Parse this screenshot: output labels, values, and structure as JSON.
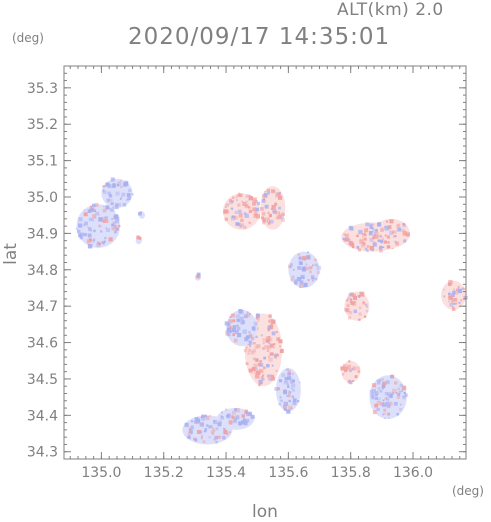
{
  "header": {
    "altitude_label": "ALT(km)  2.0",
    "timestamp": "2020/09/17 14:35:01"
  },
  "chart_data": {
    "type": "heatmap",
    "xlabel": "lon",
    "ylabel": "lat",
    "x_unit": "(deg)",
    "y_unit": "(deg)",
    "xlim": [
      134.88,
      136.17
    ],
    "ylim": [
      34.28,
      35.36
    ],
    "xticks": [
      "135.0",
      "135.2",
      "135.4",
      "135.6",
      "135.8",
      "136.0"
    ],
    "xtick_values": [
      135.0,
      135.2,
      135.4,
      135.6,
      135.8,
      136.0
    ],
    "yticks": [
      "34.3",
      "34.4",
      "34.5",
      "34.6",
      "34.7",
      "34.8",
      "34.9",
      "35.0",
      "35.1",
      "35.2",
      "35.3"
    ],
    "ytick_values": [
      34.3,
      34.4,
      34.5,
      34.6,
      34.7,
      34.8,
      34.9,
      35.0,
      35.1,
      35.2,
      35.3
    ],
    "grid": false,
    "colors": {
      "positive": "#f2a0a0",
      "negative": "#a8b0f0",
      "frame": "#808080"
    },
    "regions": [
      {
        "lon": 134.99,
        "lat": 34.92,
        "rx": 0.07,
        "ry": 0.06,
        "sign": -1
      },
      {
        "lon": 135.05,
        "lat": 35.01,
        "rx": 0.05,
        "ry": 0.04,
        "sign": -1
      },
      {
        "lon": 135.34,
        "lat": 34.36,
        "rx": 0.08,
        "ry": 0.04,
        "sign": -1
      },
      {
        "lon": 135.43,
        "lat": 34.39,
        "rx": 0.06,
        "ry": 0.03,
        "sign": -1
      },
      {
        "lon": 135.52,
        "lat": 34.58,
        "rx": 0.06,
        "ry": 0.1,
        "sign": 1
      },
      {
        "lon": 135.45,
        "lat": 34.64,
        "rx": 0.05,
        "ry": 0.05,
        "sign": -1
      },
      {
        "lon": 135.6,
        "lat": 34.47,
        "rx": 0.04,
        "ry": 0.06,
        "sign": -1
      },
      {
        "lon": 135.45,
        "lat": 34.96,
        "rx": 0.06,
        "ry": 0.05,
        "sign": 1
      },
      {
        "lon": 135.55,
        "lat": 34.97,
        "rx": 0.04,
        "ry": 0.06,
        "sign": 1
      },
      {
        "lon": 135.65,
        "lat": 34.8,
        "rx": 0.05,
        "ry": 0.05,
        "sign": -1
      },
      {
        "lon": 135.87,
        "lat": 34.89,
        "rx": 0.1,
        "ry": 0.04,
        "sign": 1
      },
      {
        "lon": 135.93,
        "lat": 34.9,
        "rx": 0.06,
        "ry": 0.04,
        "sign": 1
      },
      {
        "lon": 135.82,
        "lat": 34.7,
        "rx": 0.04,
        "ry": 0.04,
        "sign": 1
      },
      {
        "lon": 135.92,
        "lat": 34.45,
        "rx": 0.06,
        "ry": 0.06,
        "sign": -1
      },
      {
        "lon": 135.8,
        "lat": 34.52,
        "rx": 0.03,
        "ry": 0.03,
        "sign": 1
      },
      {
        "lon": 136.13,
        "lat": 34.73,
        "rx": 0.04,
        "ry": 0.04,
        "sign": 1
      },
      {
        "lon": 135.31,
        "lat": 34.78,
        "rx": 0.01,
        "ry": 0.01,
        "sign": -1
      },
      {
        "lon": 135.12,
        "lat": 34.88,
        "rx": 0.01,
        "ry": 0.01,
        "sign": -1
      },
      {
        "lon": 135.13,
        "lat": 34.95,
        "rx": 0.01,
        "ry": 0.01,
        "sign": -1
      }
    ]
  }
}
